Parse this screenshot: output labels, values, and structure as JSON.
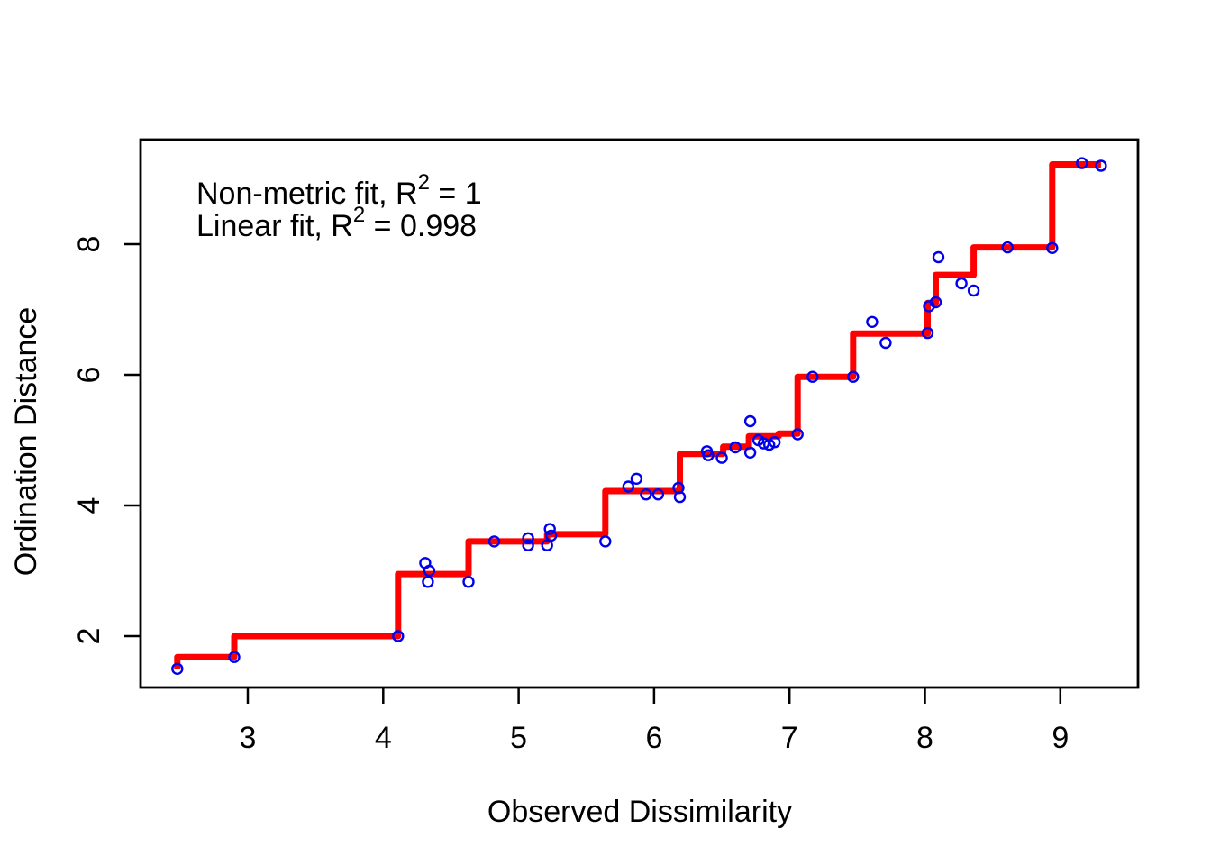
{
  "figure": {
    "background": "#FFFFFF",
    "xlabel": "Observed Dissimilarity",
    "ylabel": "Ordination Distance"
  },
  "annotations": [
    {
      "prefix": "Non-metric fit, R",
      "sup": "2",
      "suffix": " = 1"
    },
    {
      "prefix": "Linear fit, R",
      "sup": "2",
      "suffix": " = 0.998"
    }
  ],
  "colors": {
    "points": "#0000EE",
    "fit_line": "#FF0000",
    "axis": "#000000",
    "background": "#FFFFFF"
  },
  "chart_data": {
    "type": "scatter",
    "title": "",
    "xlabel": "Observed Dissimilarity",
    "ylabel": "Ordination Distance",
    "xlim": [
      2.21,
      9.57
    ],
    "ylim": [
      1.21,
      9.6
    ],
    "x_ticks": [
      3,
      4,
      5,
      6,
      7,
      8,
      9
    ],
    "y_ticks": [
      2,
      4,
      6,
      8
    ],
    "grid": false,
    "legend_position": "none",
    "annotations_text": [
      "Non-metric fit, R2 = 1",
      "Linear fit, R2 = 0.998"
    ],
    "series": [
      {
        "name": "observed-vs-ordination-points",
        "type": "scatter",
        "marker": "open-circle",
        "color": "#0000EE",
        "points": [
          [
            2.48,
            1.5
          ],
          [
            2.9,
            1.68
          ],
          [
            4.11,
            2.0
          ],
          [
            4.31,
            3.12
          ],
          [
            4.34,
            3.0
          ],
          [
            4.33,
            2.83
          ],
          [
            4.63,
            2.83
          ],
          [
            4.82,
            3.45
          ],
          [
            5.07,
            3.5
          ],
          [
            5.07,
            3.39
          ],
          [
            5.21,
            3.39
          ],
          [
            5.23,
            3.64
          ],
          [
            5.24,
            3.54
          ],
          [
            5.64,
            3.45
          ],
          [
            5.81,
            4.29
          ],
          [
            5.87,
            4.41
          ],
          [
            5.94,
            4.17
          ],
          [
            6.03,
            4.17
          ],
          [
            6.18,
            4.27
          ],
          [
            6.19,
            4.13
          ],
          [
            6.39,
            4.83
          ],
          [
            6.4,
            4.77
          ],
          [
            6.5,
            4.73
          ],
          [
            6.6,
            4.89
          ],
          [
            6.71,
            5.29
          ],
          [
            6.71,
            4.81
          ],
          [
            6.77,
            5.0
          ],
          [
            6.81,
            4.95
          ],
          [
            6.85,
            4.93
          ],
          [
            6.89,
            4.97
          ],
          [
            7.06,
            5.09
          ],
          [
            7.17,
            5.97
          ],
          [
            7.47,
            5.97
          ],
          [
            7.61,
            6.81
          ],
          [
            7.71,
            6.49
          ],
          [
            8.02,
            6.64
          ],
          [
            8.03,
            7.05
          ],
          [
            8.08,
            7.11
          ],
          [
            8.1,
            7.8
          ],
          [
            8.27,
            7.4
          ],
          [
            8.36,
            7.29
          ],
          [
            8.61,
            7.95
          ],
          [
            8.94,
            7.94
          ],
          [
            9.16,
            9.24
          ],
          [
            9.3,
            9.2
          ]
        ]
      },
      {
        "name": "monotone-regression-step-fit",
        "type": "step-line",
        "color": "#FF0000",
        "points": [
          [
            2.48,
            1.5
          ],
          [
            2.48,
            1.68
          ],
          [
            2.9,
            1.68
          ],
          [
            2.9,
            2.0
          ],
          [
            4.11,
            2.0
          ],
          [
            4.11,
            2.95
          ],
          [
            4.63,
            2.95
          ],
          [
            4.63,
            3.45
          ],
          [
            5.21,
            3.45
          ],
          [
            5.21,
            3.56
          ],
          [
            5.64,
            3.56
          ],
          [
            5.64,
            4.22
          ],
          [
            6.19,
            4.22
          ],
          [
            6.19,
            4.79
          ],
          [
            6.51,
            4.79
          ],
          [
            6.51,
            4.9
          ],
          [
            6.7,
            4.9
          ],
          [
            6.7,
            5.06
          ],
          [
            6.92,
            5.06
          ],
          [
            6.92,
            5.1
          ],
          [
            7.06,
            5.1
          ],
          [
            7.06,
            5.97
          ],
          [
            7.47,
            5.97
          ],
          [
            7.47,
            6.63
          ],
          [
            8.02,
            6.63
          ],
          [
            8.02,
            7.1
          ],
          [
            8.08,
            7.1
          ],
          [
            8.08,
            7.53
          ],
          [
            8.36,
            7.53
          ],
          [
            8.36,
            7.95
          ],
          [
            8.94,
            7.95
          ],
          [
            8.94,
            9.22
          ],
          [
            9.3,
            9.22
          ]
        ]
      }
    ]
  }
}
